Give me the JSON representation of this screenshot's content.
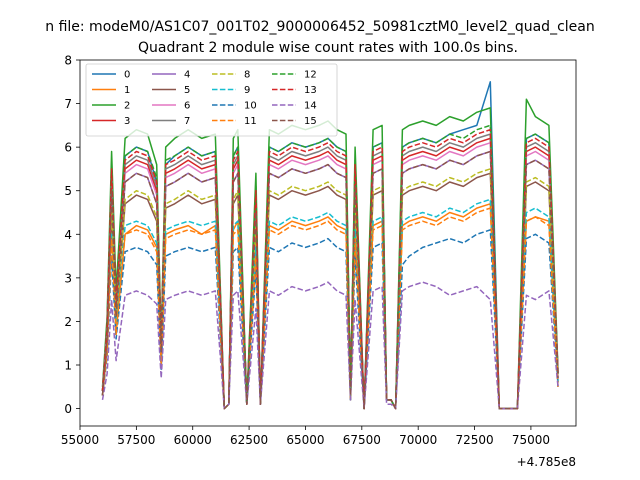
{
  "figure": {
    "suptitle": "n file: modeM0/AS1C07_001T02_9000006452_50981cztM0_level2_quad_clean",
    "title": "Quadrant 2 module wise count rates with 100.0s bins.",
    "x_offset_label": "+4.785e8"
  },
  "chart_data": {
    "type": "line",
    "title": "Quadrant 2 module wise count rates with 100.0s bins.",
    "xlabel": "",
    "ylabel": "",
    "x_offset": 478500000,
    "xlim": [
      55000,
      77000
    ],
    "ylim": [
      -0.4,
      8.0
    ],
    "xticks": [
      55000,
      57500,
      60000,
      62500,
      65000,
      67500,
      70000,
      72500,
      75000
    ],
    "yticks": [
      0,
      1,
      2,
      3,
      4,
      5,
      6,
      7,
      8
    ],
    "grid": false,
    "legend": "upper-left, 4 columns",
    "x": [
      56000,
      56200,
      56400,
      56600,
      57000,
      57500,
      58000,
      58400,
      58600,
      58800,
      59200,
      59800,
      60400,
      61000,
      61400,
      61600,
      61800,
      62000,
      62400,
      62800,
      63000,
      63400,
      63800,
      64400,
      65000,
      65600,
      66000,
      66400,
      66800,
      67000,
      67200,
      67600,
      68000,
      68400,
      68600,
      68800,
      69000,
      69300,
      69600,
      70200,
      70800,
      71400,
      72000,
      72600,
      73200,
      73600,
      74000,
      74400,
      74800,
      75200,
      75800,
      76200
    ],
    "series": [
      {
        "name": "0",
        "values": [
          0.4,
          2.0,
          5.5,
          2.5,
          5.8,
          6.0,
          5.9,
          5.2,
          1.5,
          5.6,
          5.8,
          6.0,
          5.8,
          5.9,
          0.0,
          0.1,
          5.8,
          6.0,
          0.1,
          5.0,
          0.1,
          6.0,
          5.9,
          6.1,
          6.0,
          6.1,
          6.2,
          6.0,
          5.9,
          0.3,
          5.6,
          0.0,
          6.0,
          6.1,
          0.2,
          0.2,
          0.0,
          6.0,
          6.1,
          6.2,
          6.1,
          6.3,
          6.4,
          6.5,
          7.5,
          0.0,
          0.0,
          0.0,
          6.2,
          6.3,
          6.1,
          0.8
        ],
        "color": "#1f77b4",
        "dash": "solid"
      },
      {
        "name": "1",
        "values": [
          0.3,
          1.5,
          4.2,
          1.8,
          4.0,
          4.2,
          4.1,
          3.7,
          1.0,
          4.0,
          4.1,
          4.2,
          4.0,
          4.2,
          0.0,
          0.1,
          4.1,
          4.3,
          0.1,
          3.6,
          0.1,
          4.2,
          4.1,
          4.3,
          4.2,
          4.3,
          4.4,
          4.2,
          4.1,
          0.2,
          4.0,
          0.0,
          4.2,
          4.3,
          0.2,
          0.2,
          0.0,
          4.2,
          4.3,
          4.4,
          4.3,
          4.5,
          4.4,
          4.6,
          4.7,
          0.0,
          0.0,
          0.0,
          4.3,
          4.4,
          4.3,
          0.6
        ],
        "color": "#ff7f0e",
        "dash": "solid"
      },
      {
        "name": "2",
        "values": [
          0.5,
          2.1,
          5.9,
          2.7,
          6.2,
          6.4,
          6.3,
          5.6,
          1.6,
          6.0,
          6.2,
          6.4,
          6.2,
          6.3,
          0.0,
          0.1,
          6.2,
          6.4,
          0.1,
          5.4,
          0.1,
          6.4,
          6.3,
          6.5,
          6.4,
          6.5,
          6.6,
          6.4,
          6.3,
          0.3,
          6.0,
          0.0,
          6.4,
          6.5,
          0.2,
          0.2,
          0.0,
          6.4,
          6.5,
          6.6,
          6.5,
          6.7,
          6.6,
          6.8,
          6.9,
          0.0,
          0.0,
          0.0,
          7.1,
          6.7,
          6.5,
          0.9
        ],
        "color": "#2ca02c",
        "dash": "solid"
      },
      {
        "name": "3",
        "values": [
          0.4,
          1.9,
          5.3,
          2.4,
          5.5,
          5.7,
          5.6,
          5.0,
          1.4,
          5.4,
          5.5,
          5.7,
          5.5,
          5.6,
          0.0,
          0.1,
          5.5,
          5.7,
          0.1,
          4.8,
          0.1,
          5.7,
          5.6,
          5.8,
          5.7,
          5.8,
          5.9,
          5.7,
          5.6,
          0.3,
          5.4,
          0.0,
          5.7,
          5.8,
          0.2,
          0.2,
          0.0,
          5.7,
          5.8,
          5.9,
          5.8,
          6.0,
          5.9,
          6.1,
          6.2,
          0.0,
          0.0,
          0.0,
          5.9,
          6.0,
          5.8,
          0.8
        ],
        "color": "#d62728",
        "dash": "solid"
      },
      {
        "name": "4",
        "values": [
          0.3,
          1.6,
          5.0,
          2.2,
          5.2,
          5.4,
          5.3,
          4.7,
          1.3,
          5.1,
          5.2,
          5.4,
          5.2,
          5.3,
          0.0,
          0.1,
          5.2,
          5.4,
          0.1,
          4.5,
          0.1,
          5.4,
          5.3,
          5.5,
          5.4,
          5.5,
          5.6,
          5.4,
          5.3,
          0.3,
          5.1,
          0.0,
          5.4,
          5.5,
          0.2,
          0.2,
          0.0,
          5.4,
          5.5,
          5.6,
          5.5,
          5.7,
          5.6,
          5.8,
          5.9,
          0.0,
          0.0,
          0.0,
          5.6,
          5.7,
          5.5,
          0.7
        ],
        "color": "#9467bd",
        "dash": "solid"
      },
      {
        "name": "5",
        "values": [
          0.3,
          1.4,
          4.5,
          2.0,
          4.7,
          4.9,
          4.8,
          4.3,
          1.2,
          4.6,
          4.7,
          4.9,
          4.7,
          4.8,
          0.0,
          0.1,
          4.7,
          4.9,
          0.1,
          4.1,
          0.1,
          4.9,
          4.8,
          5.0,
          4.9,
          5.0,
          5.1,
          4.9,
          4.8,
          0.2,
          4.6,
          0.0,
          4.9,
          5.0,
          0.2,
          0.2,
          0.0,
          4.9,
          5.0,
          5.1,
          5.0,
          5.2,
          5.1,
          5.3,
          5.4,
          0.0,
          0.0,
          0.0,
          5.1,
          5.2,
          5.0,
          0.6
        ],
        "color": "#8c564b",
        "dash": "solid"
      },
      {
        "name": "6",
        "values": [
          0.4,
          1.8,
          5.2,
          2.3,
          5.4,
          5.6,
          5.5,
          4.9,
          1.4,
          5.3,
          5.4,
          5.6,
          5.4,
          5.5,
          0.0,
          0.1,
          5.4,
          5.6,
          0.1,
          4.7,
          0.1,
          5.6,
          5.5,
          5.7,
          5.6,
          5.7,
          5.8,
          5.6,
          5.5,
          0.3,
          5.3,
          0.0,
          5.6,
          5.7,
          0.2,
          0.2,
          0.0,
          5.6,
          5.7,
          5.8,
          5.7,
          5.9,
          5.8,
          6.0,
          6.1,
          0.0,
          0.0,
          0.0,
          5.8,
          5.9,
          5.7,
          0.7
        ],
        "color": "#e377c2",
        "dash": "solid"
      },
      {
        "name": "7",
        "values": [
          0.4,
          1.7,
          5.4,
          2.3,
          5.6,
          5.8,
          5.7,
          5.1,
          1.4,
          5.5,
          5.6,
          5.8,
          5.6,
          5.7,
          0.0,
          0.1,
          5.6,
          5.8,
          0.1,
          4.9,
          0.1,
          5.8,
          5.7,
          5.9,
          5.8,
          5.9,
          6.0,
          5.8,
          5.7,
          0.3,
          5.5,
          0.0,
          5.8,
          5.9,
          0.2,
          0.2,
          0.0,
          5.8,
          5.9,
          6.0,
          5.9,
          6.1,
          6.0,
          6.2,
          6.3,
          0.0,
          0.0,
          0.0,
          6.0,
          6.1,
          5.9,
          0.8
        ],
        "color": "#7f7f7f",
        "dash": "solid"
      },
      {
        "name": "8",
        "values": [
          0.3,
          1.5,
          4.6,
          2.0,
          4.8,
          5.0,
          4.9,
          4.4,
          1.2,
          4.7,
          4.8,
          5.0,
          4.8,
          4.9,
          0.0,
          0.1,
          4.8,
          5.0,
          0.1,
          4.2,
          0.1,
          5.0,
          4.9,
          5.1,
          5.0,
          5.1,
          5.2,
          5.0,
          4.9,
          0.2,
          4.7,
          0.0,
          5.0,
          5.1,
          0.2,
          0.2,
          0.0,
          5.0,
          5.1,
          5.2,
          5.1,
          5.3,
          5.2,
          5.4,
          5.5,
          0.0,
          0.0,
          0.0,
          5.2,
          5.3,
          5.1,
          0.6
        ],
        "color": "#bcbd22",
        "dash": "dashed"
      },
      {
        "name": "9",
        "values": [
          0.3,
          1.4,
          4.0,
          1.8,
          4.2,
          4.3,
          4.2,
          3.8,
          1.1,
          4.1,
          4.2,
          4.3,
          4.2,
          4.3,
          0.0,
          0.1,
          4.2,
          4.3,
          0.1,
          3.7,
          0.1,
          4.3,
          4.2,
          4.4,
          4.3,
          4.4,
          4.5,
          4.3,
          4.2,
          0.2,
          4.1,
          0.0,
          4.3,
          4.4,
          0.2,
          0.2,
          0.0,
          4.3,
          4.4,
          4.5,
          4.4,
          4.6,
          4.5,
          4.7,
          4.8,
          0.0,
          0.0,
          0.0,
          4.5,
          4.6,
          4.4,
          0.6
        ],
        "color": "#17becf",
        "dash": "dashed"
      },
      {
        "name": "10",
        "values": [
          0.3,
          1.2,
          3.5,
          1.6,
          3.6,
          3.7,
          3.6,
          3.3,
          0.9,
          3.5,
          3.6,
          3.7,
          3.6,
          3.7,
          0.0,
          0.1,
          3.6,
          3.7,
          0.1,
          3.2,
          0.1,
          3.7,
          3.6,
          3.8,
          3.7,
          3.8,
          3.9,
          3.7,
          3.6,
          0.2,
          3.5,
          0.0,
          3.7,
          3.8,
          0.2,
          0.2,
          0.0,
          3.3,
          3.5,
          3.7,
          3.8,
          3.9,
          3.8,
          4.0,
          4.1,
          0.0,
          0.0,
          0.0,
          3.9,
          4.0,
          3.8,
          0.5
        ],
        "color": "#1f77b4",
        "dash": "dashed"
      },
      {
        "name": "11",
        "values": [
          0.3,
          1.3,
          3.9,
          1.7,
          4.0,
          4.1,
          4.0,
          3.6,
          1.0,
          3.9,
          4.0,
          4.1,
          4.0,
          4.1,
          0.0,
          0.1,
          4.0,
          4.1,
          0.1,
          3.5,
          0.1,
          4.1,
          4.0,
          4.2,
          4.1,
          4.2,
          4.3,
          4.1,
          4.0,
          0.2,
          3.9,
          0.0,
          4.1,
          4.2,
          0.2,
          0.2,
          0.0,
          4.1,
          4.2,
          4.3,
          4.2,
          4.4,
          4.3,
          4.5,
          4.6,
          0.0,
          0.0,
          0.0,
          4.3,
          4.4,
          4.2,
          0.5
        ],
        "color": "#ff7f0e",
        "dash": "dashed"
      },
      {
        "name": "12",
        "values": [
          0.4,
          1.9,
          5.6,
          2.5,
          5.8,
          6.0,
          5.9,
          5.3,
          1.5,
          5.7,
          5.8,
          6.0,
          5.8,
          5.9,
          0.0,
          0.1,
          5.8,
          6.0,
          0.1,
          5.1,
          0.1,
          6.0,
          5.9,
          6.1,
          6.0,
          6.1,
          6.2,
          6.0,
          5.9,
          0.3,
          5.7,
          0.0,
          6.0,
          6.1,
          0.2,
          0.2,
          0.0,
          6.0,
          6.1,
          6.2,
          6.1,
          6.3,
          6.2,
          6.4,
          6.5,
          0.0,
          0.0,
          0.0,
          6.2,
          6.3,
          6.1,
          0.8
        ],
        "color": "#2ca02c",
        "dash": "dashed"
      },
      {
        "name": "13",
        "values": [
          0.4,
          1.8,
          5.5,
          2.4,
          5.7,
          5.9,
          5.8,
          5.2,
          1.5,
          5.6,
          5.7,
          5.9,
          5.7,
          5.8,
          0.0,
          0.1,
          5.7,
          5.9,
          0.1,
          5.0,
          0.1,
          5.9,
          5.8,
          6.0,
          5.9,
          6.0,
          6.1,
          5.9,
          5.8,
          0.3,
          5.6,
          0.0,
          5.9,
          6.0,
          0.2,
          0.2,
          0.0,
          5.9,
          6.0,
          6.1,
          6.0,
          6.2,
          6.1,
          6.3,
          6.4,
          0.0,
          0.0,
          0.0,
          6.1,
          6.2,
          6.0,
          0.8
        ],
        "color": "#d62728",
        "dash": "dashed"
      },
      {
        "name": "14",
        "values": [
          0.2,
          0.8,
          2.5,
          1.1,
          2.6,
          2.7,
          2.6,
          2.4,
          0.7,
          2.5,
          2.6,
          2.7,
          2.6,
          2.7,
          0.0,
          0.1,
          2.6,
          2.7,
          0.1,
          2.3,
          0.1,
          2.7,
          2.6,
          2.8,
          2.7,
          2.8,
          2.9,
          2.7,
          2.6,
          0.2,
          2.5,
          0.0,
          2.7,
          2.8,
          0.1,
          0.1,
          0.0,
          2.7,
          2.8,
          2.9,
          2.8,
          2.6,
          2.7,
          2.8,
          2.5,
          0.0,
          0.0,
          0.0,
          2.6,
          2.5,
          2.7,
          0.5
        ],
        "color": "#9467bd",
        "dash": "dashed"
      },
      {
        "name": "15",
        "values": [
          0.3,
          1.6,
          5.0,
          2.1,
          5.2,
          5.4,
          5.3,
          4.7,
          1.3,
          5.1,
          5.2,
          5.4,
          5.2,
          5.3,
          0.0,
          0.1,
          5.2,
          5.4,
          0.1,
          4.5,
          0.1,
          5.4,
          5.3,
          5.5,
          5.4,
          5.5,
          5.6,
          5.4,
          5.3,
          0.3,
          5.1,
          0.0,
          5.4,
          5.5,
          0.2,
          0.2,
          0.0,
          5.4,
          5.5,
          5.6,
          5.5,
          5.7,
          5.6,
          5.8,
          5.9,
          0.0,
          0.0,
          0.0,
          5.6,
          5.7,
          5.5,
          0.7
        ],
        "color": "#8c564b",
        "dash": "dashed"
      }
    ]
  }
}
